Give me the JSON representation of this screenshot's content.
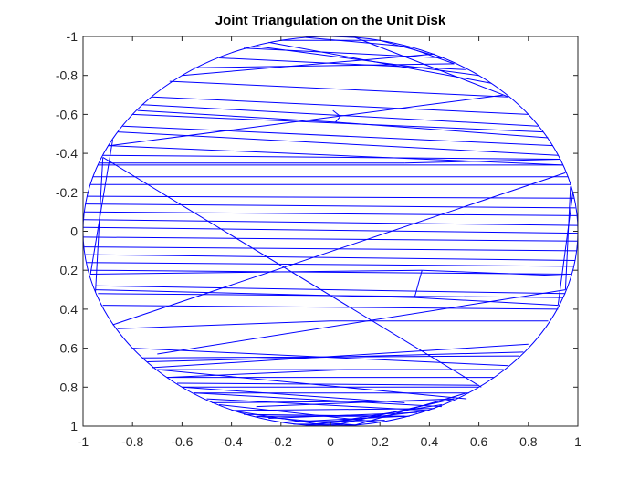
{
  "figure": {
    "background": "#ffffff"
  },
  "chart_data": {
    "type": "line",
    "title": "Joint Triangulation on the Unit Disk",
    "xlabel": "",
    "ylabel": "",
    "xlim": [
      -1,
      1
    ],
    "ylim": [
      -1,
      1
    ],
    "y_axis_direction": "reversed",
    "grid": false,
    "legend": "none",
    "line_color": "#0000ff",
    "axis_color": "#262626",
    "x_ticks": [
      -1,
      -0.8,
      -0.6,
      -0.4,
      -0.2,
      0,
      0.2,
      0.4,
      0.6,
      0.8,
      1
    ],
    "x_tick_labels": [
      "-1",
      "-0.8",
      "-0.6",
      "-0.4",
      "-0.2",
      "0",
      "0.2",
      "0.4",
      "0.6",
      "0.8",
      "1"
    ],
    "y_ticks": [
      -1,
      -0.8,
      -0.6,
      -0.4,
      -0.2,
      0,
      0.2,
      0.4,
      0.6,
      0.8,
      1
    ],
    "y_tick_labels": [
      "-1",
      "-0.8",
      "-0.6",
      "-0.4",
      "-0.2",
      "0",
      "0.2",
      "0.4",
      "0.6",
      "0.8",
      "1"
    ],
    "boundary": {
      "shape": "circle",
      "center": [
        0,
        0
      ],
      "radius": 1,
      "note": "mesh edges approximate the unit circle"
    },
    "edges": [
      [
        [
          -0.65,
          -0.77
        ],
        [
          0.72,
          -0.69
        ]
      ],
      [
        [
          -0.6,
          -0.8
        ],
        [
          0.42,
          -0.91
        ]
      ],
      [
        [
          -0.55,
          -0.84
        ],
        [
          0.5,
          -0.86
        ]
      ],
      [
        [
          -0.45,
          -0.89
        ],
        [
          0.55,
          -0.83
        ]
      ],
      [
        [
          -0.35,
          -0.94
        ],
        [
          0.45,
          -0.89
        ]
      ],
      [
        [
          -0.2,
          -0.98
        ],
        [
          0.2,
          -0.98
        ]
      ],
      [
        [
          -0.1,
          -0.995
        ],
        [
          0.3,
          -0.95
        ]
      ],
      [
        [
          0.0,
          -1.0
        ],
        [
          0.1,
          -0.995
        ]
      ],
      [
        [
          -0.3,
          -0.95
        ],
        [
          0.6,
          -0.8
        ]
      ],
      [
        [
          -0.25,
          -0.97
        ],
        [
          0.65,
          -0.76
        ]
      ],
      [
        [
          0.1,
          -0.995
        ],
        [
          0.72,
          -0.69
        ]
      ],
      [
        [
          0.2,
          -0.98
        ],
        [
          0.4,
          -0.91
        ]
      ],
      [
        [
          0.3,
          -0.95
        ],
        [
          0.5,
          -0.86
        ]
      ],
      [
        [
          -0.72,
          -0.69
        ],
        [
          0.8,
          -0.6
        ]
      ],
      [
        [
          -0.76,
          -0.65
        ],
        [
          0.84,
          -0.54
        ]
      ],
      [
        [
          -0.8,
          -0.6
        ],
        [
          0.86,
          -0.51
        ]
      ],
      [
        [
          -0.84,
          -0.54
        ],
        [
          0.9,
          -0.44
        ]
      ],
      [
        [
          -0.86,
          -0.51
        ],
        [
          0.92,
          -0.39
        ]
      ],
      [
        [
          -0.9,
          -0.44
        ],
        [
          0.94,
          -0.34
        ]
      ],
      [
        [
          -0.92,
          -0.39
        ],
        [
          0.93,
          -0.37
        ]
      ],
      [
        [
          -0.78,
          -0.62
        ],
        [
          0.02,
          -0.56
        ]
      ],
      [
        [
          0.02,
          -0.56
        ],
        [
          0.88,
          -0.48
        ]
      ],
      [
        [
          0.02,
          -0.56
        ],
        [
          0.04,
          -0.59
        ]
      ],
      [
        [
          0.04,
          -0.59
        ],
        [
          0.01,
          -0.62
        ]
      ],
      [
        [
          -0.94,
          -0.34
        ],
        [
          0.94,
          -0.34
        ]
      ],
      [
        [
          -0.96,
          -0.28
        ],
        [
          0.96,
          -0.28
        ]
      ],
      [
        [
          -0.97,
          -0.24
        ],
        [
          0.97,
          -0.24
        ]
      ],
      [
        [
          -0.985,
          -0.18
        ],
        [
          0.985,
          -0.17
        ]
      ],
      [
        [
          -0.99,
          -0.14
        ],
        [
          0.99,
          -0.12
        ]
      ],
      [
        [
          -0.995,
          -0.1
        ],
        [
          0.995,
          -0.08
        ]
      ],
      [
        [
          -0.998,
          -0.06
        ],
        [
          0.998,
          -0.03
        ]
      ],
      [
        [
          -1.0,
          -0.02
        ],
        [
          1.0,
          0.01
        ]
      ],
      [
        [
          -0.999,
          0.03
        ],
        [
          0.999,
          0.05
        ]
      ],
      [
        [
          -0.995,
          0.08
        ],
        [
          0.995,
          0.1
        ]
      ],
      [
        [
          -0.99,
          0.12
        ],
        [
          0.99,
          0.15
        ]
      ],
      [
        [
          -0.985,
          0.16
        ],
        [
          0.985,
          0.18
        ]
      ],
      [
        [
          -0.97,
          0.2
        ],
        [
          0.97,
          0.22
        ]
      ],
      [
        [
          -0.95,
          0.28
        ],
        [
          0.95,
          0.32
        ]
      ],
      [
        [
          -0.94,
          0.32
        ],
        [
          0.94,
          0.34
        ]
      ],
      [
        [
          -0.92,
          0.38
        ],
        [
          0.92,
          0.4
        ]
      ],
      [
        [
          -0.92,
          -0.38
        ],
        [
          0.61,
          0.8
        ]
      ],
      [
        [
          -0.93,
          -0.35
        ],
        [
          0.3,
          -0.35
        ]
      ],
      [
        [
          0.3,
          -0.35
        ],
        [
          0.93,
          -0.37
        ]
      ],
      [
        [
          -0.89,
          -0.44
        ],
        [
          0.7,
          -0.7
        ]
      ],
      [
        [
          -0.97,
          0.22
        ],
        [
          0.37,
          0.2
        ]
      ],
      [
        [
          0.37,
          0.2
        ],
        [
          0.97,
          0.23
        ]
      ],
      [
        [
          0.37,
          0.2
        ],
        [
          0.34,
          0.34
        ]
      ],
      [
        [
          0.34,
          0.34
        ],
        [
          0.92,
          0.38
        ]
      ],
      [
        [
          -0.95,
          0.3
        ],
        [
          0.34,
          0.34
        ]
      ],
      [
        [
          -0.86,
          0.5
        ],
        [
          0.0,
          0.46
        ]
      ],
      [
        [
          0.0,
          0.46
        ],
        [
          0.88,
          0.46
        ]
      ],
      [
        [
          -0.7,
          0.63
        ],
        [
          0.95,
          0.3
        ]
      ],
      [
        [
          -0.72,
          0.7
        ],
        [
          0.8,
          0.58
        ]
      ],
      [
        [
          -0.74,
          0.67
        ],
        [
          0.78,
          0.62
        ]
      ],
      [
        [
          -0.76,
          0.65
        ],
        [
          0.76,
          0.64
        ]
      ],
      [
        [
          -0.8,
          0.6
        ],
        [
          0.72,
          0.69
        ]
      ],
      [
        [
          -0.7,
          0.71
        ],
        [
          0.7,
          0.71
        ]
      ],
      [
        [
          -0.66,
          0.75
        ],
        [
          0.66,
          0.75
        ]
      ],
      [
        [
          -0.6,
          0.8
        ],
        [
          0.6,
          0.8
        ]
      ],
      [
        [
          -0.55,
          0.83
        ],
        [
          0.56,
          0.83
        ]
      ],
      [
        [
          -0.48,
          0.88
        ],
        [
          0.5,
          0.87
        ]
      ],
      [
        [
          -0.4,
          0.92
        ],
        [
          0.42,
          0.91
        ]
      ],
      [
        [
          -0.3,
          0.95
        ],
        [
          0.32,
          0.95
        ]
      ],
      [
        [
          -0.2,
          0.98
        ],
        [
          0.22,
          0.97
        ]
      ],
      [
        [
          -0.1,
          0.995
        ],
        [
          0.1,
          0.995
        ]
      ],
      [
        [
          -0.6,
          0.8
        ],
        [
          0.3,
          0.88
        ]
      ],
      [
        [
          -0.5,
          0.86
        ],
        [
          0.4,
          0.92
        ]
      ],
      [
        [
          -0.4,
          0.92
        ],
        [
          0.0,
          1.0
        ]
      ],
      [
        [
          -0.3,
          0.95
        ],
        [
          0.1,
          0.995
        ]
      ],
      [
        [
          -0.2,
          0.98
        ],
        [
          0.3,
          0.95
        ]
      ],
      [
        [
          -0.1,
          0.995
        ],
        [
          0.4,
          0.92
        ]
      ],
      [
        [
          0.0,
          1.0
        ],
        [
          0.5,
          0.86
        ]
      ],
      [
        [
          0.1,
          0.995
        ],
        [
          0.55,
          0.83
        ]
      ],
      [
        [
          0.2,
          0.98
        ],
        [
          -0.45,
          0.89
        ]
      ],
      [
        [
          0.3,
          0.95
        ],
        [
          -0.35,
          0.94
        ]
      ],
      [
        [
          -0.25,
          0.96
        ],
        [
          0.35,
          0.93
        ]
      ],
      [
        [
          -0.05,
          0.99
        ],
        [
          0.45,
          0.89
        ]
      ],
      [
        [
          0.05,
          0.99
        ],
        [
          -0.15,
          0.99
        ]
      ],
      [
        [
          -0.55,
          0.83
        ],
        [
          0.45,
          0.9
        ]
      ],
      [
        [
          0.5,
          0.86
        ],
        [
          -0.3,
          0.9
        ]
      ],
      [
        [
          -0.7,
          0.71
        ],
        [
          0.55,
          0.86
        ]
      ],
      [
        [
          -0.66,
          0.75
        ],
        [
          0.06,
          0.71
        ]
      ],
      [
        [
          0.06,
          0.71
        ],
        [
          0.7,
          0.71
        ]
      ],
      [
        [
          -0.62,
          0.78
        ],
        [
          0.6,
          0.79
        ]
      ],
      [
        [
          -0.88,
          0.48
        ],
        [
          0.95,
          -0.3
        ]
      ],
      [
        [
          -0.95,
          0.31
        ],
        [
          -0.92,
          -0.38
        ]
      ],
      [
        [
          0.95,
          0.3
        ],
        [
          0.97,
          -0.23
        ]
      ],
      [
        [
          -0.97,
          0.22
        ],
        [
          -0.88,
          -0.47
        ]
      ],
      [
        [
          0.92,
          0.38
        ],
        [
          0.98,
          -0.2
        ]
      ]
    ]
  }
}
